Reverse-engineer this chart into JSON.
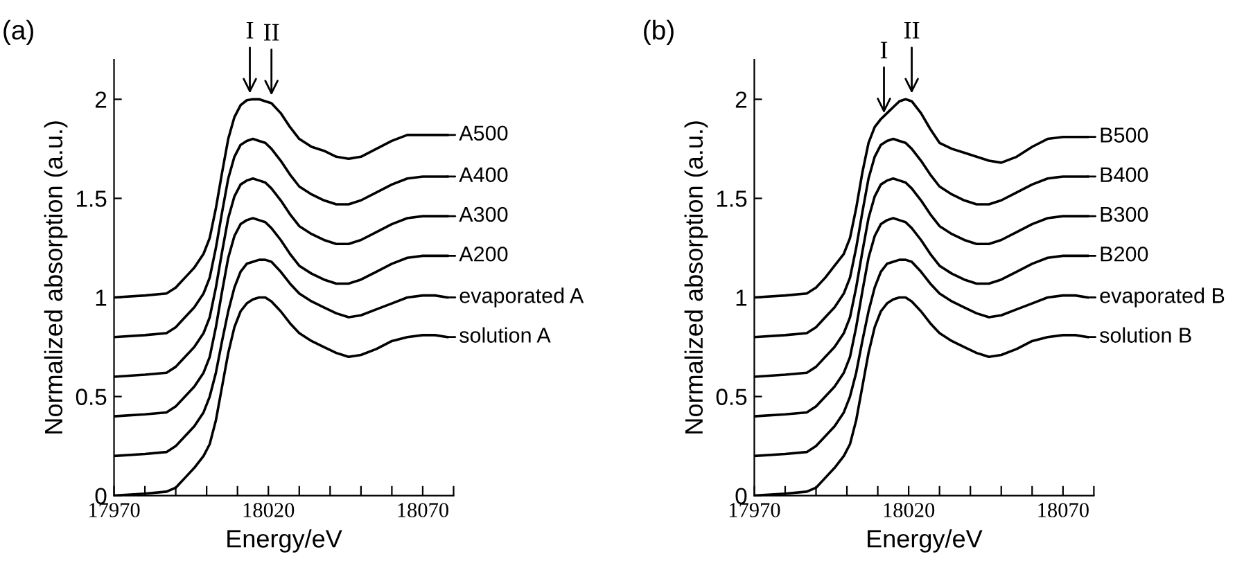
{
  "chart_data": [
    {
      "type": "line",
      "title": "(a)",
      "xlabel": "Energy/eV",
      "ylabel": "Normalized absorption (a.u.)",
      "xlim": [
        17970,
        18080
      ],
      "ylim": [
        0,
        2.2
      ],
      "xticks": [
        17970,
        {
          "value": 17980,
          "label": null
        },
        {
          "value": 17990,
          "label": null
        },
        {
          "value": 18000,
          "label": null
        },
        {
          "value": 18010,
          "label": null
        },
        18020,
        {
          "value": 18030,
          "label": null
        },
        {
          "value": 18040,
          "label": null
        },
        {
          "value": 18050,
          "label": null
        },
        {
          "value": 18060,
          "label": null
        },
        18070,
        {
          "value": 18080,
          "label": null
        }
      ],
      "yticks": [
        0,
        0.5,
        1,
        1.5,
        2
      ],
      "grid": false,
      "legend": "right",
      "marker": "none",
      "line_style": "solid",
      "annotations": [
        {
          "text": "I",
          "x": 18014,
          "y": 2.0
        },
        {
          "text": "II",
          "x": 18021,
          "y": 1.99
        }
      ],
      "x": [
        17970,
        17980,
        17987,
        17990,
        17993,
        17996,
        17999,
        18001,
        18003,
        18005,
        18007,
        18009,
        18011,
        18013,
        18015,
        18017,
        18019,
        18021,
        18024,
        18027,
        18030,
        18034,
        18038,
        18042,
        18046,
        18050,
        18055,
        18060,
        18065,
        18070,
        18074,
        18078
      ],
      "series": [
        {
          "name": "A500",
          "color": "#000000",
          "values": [
            1.0,
            1.01,
            1.02,
            1.05,
            1.1,
            1.15,
            1.22,
            1.3,
            1.45,
            1.63,
            1.8,
            1.91,
            1.97,
            1.995,
            2.0,
            2.0,
            1.99,
            1.98,
            1.93,
            1.86,
            1.8,
            1.76,
            1.74,
            1.71,
            1.7,
            1.71,
            1.75,
            1.79,
            1.82,
            1.82,
            1.82,
            1.82
          ]
        },
        {
          "name": "A400",
          "color": "#000000",
          "values": [
            0.8,
            0.81,
            0.82,
            0.85,
            0.9,
            0.95,
            1.02,
            1.1,
            1.25,
            1.43,
            1.6,
            1.71,
            1.77,
            1.79,
            1.8,
            1.79,
            1.78,
            1.75,
            1.69,
            1.62,
            1.56,
            1.52,
            1.49,
            1.47,
            1.47,
            1.49,
            1.53,
            1.57,
            1.6,
            1.61,
            1.61,
            1.61
          ]
        },
        {
          "name": "A300",
          "color": "#000000",
          "values": [
            0.6,
            0.61,
            0.62,
            0.65,
            0.7,
            0.75,
            0.82,
            0.9,
            1.05,
            1.23,
            1.4,
            1.51,
            1.57,
            1.59,
            1.6,
            1.59,
            1.58,
            1.55,
            1.49,
            1.42,
            1.36,
            1.32,
            1.29,
            1.27,
            1.27,
            1.29,
            1.33,
            1.37,
            1.4,
            1.41,
            1.41,
            1.41
          ]
        },
        {
          "name": "A200",
          "color": "#000000",
          "values": [
            0.4,
            0.41,
            0.42,
            0.45,
            0.5,
            0.55,
            0.62,
            0.7,
            0.85,
            1.03,
            1.2,
            1.31,
            1.37,
            1.39,
            1.4,
            1.39,
            1.38,
            1.35,
            1.29,
            1.22,
            1.16,
            1.12,
            1.09,
            1.07,
            1.07,
            1.09,
            1.13,
            1.17,
            1.2,
            1.21,
            1.21,
            1.21
          ]
        },
        {
          "name": "evaporated A",
          "color": "#000000",
          "values": [
            0.2,
            0.21,
            0.22,
            0.25,
            0.3,
            0.35,
            0.42,
            0.5,
            0.62,
            0.78,
            0.93,
            1.05,
            1.13,
            1.17,
            1.18,
            1.19,
            1.19,
            1.18,
            1.13,
            1.07,
            1.02,
            0.98,
            0.95,
            0.92,
            0.9,
            0.91,
            0.94,
            0.97,
            1.0,
            1.01,
            1.01,
            1.0
          ]
        },
        {
          "name": "solution A",
          "color": "#000000",
          "values": [
            0.0,
            0.01,
            0.02,
            0.04,
            0.09,
            0.14,
            0.2,
            0.26,
            0.38,
            0.55,
            0.72,
            0.85,
            0.93,
            0.97,
            0.99,
            1.0,
            1.0,
            0.98,
            0.93,
            0.87,
            0.82,
            0.78,
            0.75,
            0.72,
            0.7,
            0.71,
            0.74,
            0.78,
            0.8,
            0.81,
            0.81,
            0.8
          ]
        }
      ]
    },
    {
      "type": "line",
      "title": "(b)",
      "xlabel": "Energy/eV",
      "ylabel": "Normalized absorption (a.u.)",
      "xlim": [
        17970,
        18080
      ],
      "ylim": [
        0,
        2.2
      ],
      "xticks": [
        17970,
        {
          "value": 17980,
          "label": null
        },
        {
          "value": 17990,
          "label": null
        },
        {
          "value": 18000,
          "label": null
        },
        {
          "value": 18010,
          "label": null
        },
        18020,
        {
          "value": 18030,
          "label": null
        },
        {
          "value": 18040,
          "label": null
        },
        {
          "value": 18050,
          "label": null
        },
        {
          "value": 18060,
          "label": null
        },
        18070,
        {
          "value": 18080,
          "label": null
        }
      ],
      "yticks": [
        0,
        0.5,
        1,
        1.5,
        2
      ],
      "grid": false,
      "legend": "right",
      "marker": "none",
      "line_style": "solid",
      "annotations": [
        {
          "text": "I",
          "x": 18012,
          "y": 1.9
        },
        {
          "text": "II",
          "x": 18021,
          "y": 2.0
        }
      ],
      "x": [
        17970,
        17980,
        17987,
        17990,
        17993,
        17996,
        17999,
        18001,
        18003,
        18005,
        18007,
        18009,
        18011,
        18013,
        18015,
        18017,
        18019,
        18021,
        18024,
        18027,
        18030,
        18034,
        18038,
        18042,
        18046,
        18050,
        18055,
        18060,
        18065,
        18070,
        18074,
        18078
      ],
      "series": [
        {
          "name": "B500",
          "color": "#000000",
          "values": [
            1.0,
            1.01,
            1.02,
            1.05,
            1.1,
            1.16,
            1.22,
            1.3,
            1.45,
            1.63,
            1.78,
            1.86,
            1.9,
            1.93,
            1.96,
            1.99,
            2.0,
            1.99,
            1.93,
            1.85,
            1.78,
            1.75,
            1.73,
            1.71,
            1.69,
            1.68,
            1.71,
            1.76,
            1.8,
            1.81,
            1.81,
            1.81
          ]
        },
        {
          "name": "B400",
          "color": "#000000",
          "values": [
            0.8,
            0.81,
            0.82,
            0.85,
            0.9,
            0.95,
            1.02,
            1.1,
            1.25,
            1.43,
            1.6,
            1.71,
            1.77,
            1.79,
            1.8,
            1.79,
            1.78,
            1.75,
            1.69,
            1.62,
            1.56,
            1.52,
            1.49,
            1.47,
            1.47,
            1.49,
            1.53,
            1.57,
            1.6,
            1.61,
            1.61,
            1.61
          ]
        },
        {
          "name": "B300",
          "color": "#000000",
          "values": [
            0.6,
            0.61,
            0.62,
            0.65,
            0.7,
            0.75,
            0.82,
            0.9,
            1.05,
            1.23,
            1.4,
            1.51,
            1.57,
            1.59,
            1.6,
            1.59,
            1.58,
            1.55,
            1.49,
            1.42,
            1.36,
            1.32,
            1.29,
            1.27,
            1.27,
            1.29,
            1.33,
            1.37,
            1.4,
            1.41,
            1.41,
            1.41
          ]
        },
        {
          "name": "B200",
          "color": "#000000",
          "values": [
            0.4,
            0.41,
            0.42,
            0.45,
            0.5,
            0.55,
            0.62,
            0.7,
            0.85,
            1.03,
            1.2,
            1.31,
            1.37,
            1.39,
            1.4,
            1.39,
            1.38,
            1.35,
            1.29,
            1.22,
            1.16,
            1.12,
            1.09,
            1.07,
            1.07,
            1.09,
            1.13,
            1.17,
            1.2,
            1.21,
            1.21,
            1.21
          ]
        },
        {
          "name": "evaporated B",
          "color": "#000000",
          "values": [
            0.2,
            0.21,
            0.22,
            0.25,
            0.3,
            0.35,
            0.42,
            0.5,
            0.62,
            0.78,
            0.93,
            1.05,
            1.13,
            1.17,
            1.18,
            1.19,
            1.19,
            1.18,
            1.13,
            1.07,
            1.02,
            0.98,
            0.95,
            0.92,
            0.9,
            0.91,
            0.94,
            0.97,
            1.0,
            1.01,
            1.01,
            1.0
          ]
        },
        {
          "name": "solution B",
          "color": "#000000",
          "values": [
            0.0,
            0.01,
            0.02,
            0.04,
            0.09,
            0.14,
            0.2,
            0.26,
            0.38,
            0.55,
            0.72,
            0.85,
            0.93,
            0.97,
            0.99,
            1.0,
            1.0,
            0.98,
            0.93,
            0.87,
            0.82,
            0.78,
            0.75,
            0.72,
            0.7,
            0.71,
            0.74,
            0.78,
            0.8,
            0.81,
            0.81,
            0.8
          ]
        }
      ]
    }
  ]
}
